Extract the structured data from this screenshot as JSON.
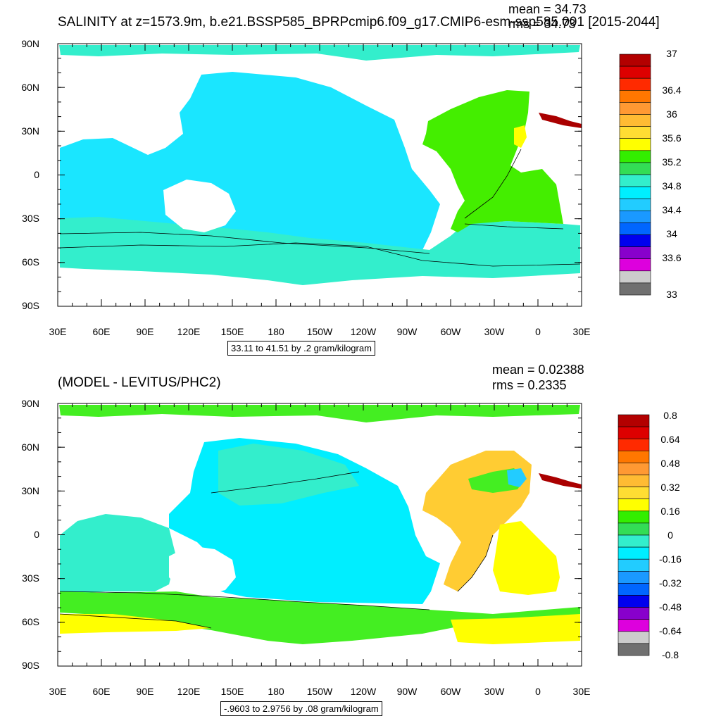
{
  "panels": [
    {
      "title": "SALINITY at z=1573.9m, b.e21.BSSP585_BPRPcmip6.f09_g17.CMIP6-esm-ssp585.001 [2015-2044]",
      "mean": "mean = 34.73",
      "rms": "rms = 34.73",
      "range_note": "33.11 to 41.51 by .2 gram/kilogram",
      "colorbar": {
        "colors": [
          "#b30000",
          "#dd0000",
          "#ff2a00",
          "#ff7700",
          "#ff9933",
          "#ffbb33",
          "#ffdd33",
          "#ffff00",
          "#33ee00",
          "#33dd55",
          "#33eecc",
          "#00eeff",
          "#22ccff",
          "#1a99ff",
          "#0066ff",
          "#0000ee",
          "#8800cc",
          "#dd00dd",
          "#cccccc",
          "#707070"
        ],
        "labels": [
          "37",
          "36.4",
          "36",
          "35.6",
          "35.2",
          "34.8",
          "34.4",
          "34",
          "33.6",
          "33"
        ]
      }
    },
    {
      "title": "(MODEL - LEVITUS/PHC2)",
      "mean": "mean = 0.02388",
      "rms": "rms = 0.2335",
      "range_note": "-.9603 to 2.9756 by .08 gram/kilogram",
      "colorbar": {
        "colors": [
          "#b30000",
          "#dd0000",
          "#ff2a00",
          "#ff7700",
          "#ff9933",
          "#ffbb33",
          "#ffdd33",
          "#ffff00",
          "#33ee00",
          "#33dd55",
          "#33eecc",
          "#00eeff",
          "#22ccff",
          "#1a99ff",
          "#0066ff",
          "#0000ee",
          "#8800cc",
          "#dd00dd",
          "#cccccc",
          "#707070"
        ],
        "labels": [
          "0.8",
          "0.64",
          "0.48",
          "0.32",
          "0.16",
          "0",
          "-0.16",
          "-0.32",
          "-0.48",
          "-0.64",
          "-0.8"
        ]
      }
    }
  ],
  "axes": {
    "lat_labels": [
      "90N",
      "60N",
      "30N",
      "0",
      "30S",
      "60S",
      "90S"
    ],
    "lon_labels": [
      "30E",
      "60E",
      "90E",
      "120E",
      "150E",
      "180",
      "150W",
      "120W",
      "90W",
      "60W",
      "30W",
      "0",
      "30E"
    ]
  },
  "colors": {
    "upper_ocean": "#1ae6ff",
    "upper_southern": "#33eecc",
    "upper_atlantic": "#44ee00",
    "lower_pacific": "#00eeff",
    "lower_teal": "#33eecc",
    "lower_green": "#44ee22",
    "lower_yellow": "#ffff00",
    "lower_orange": "#ffcc33"
  }
}
